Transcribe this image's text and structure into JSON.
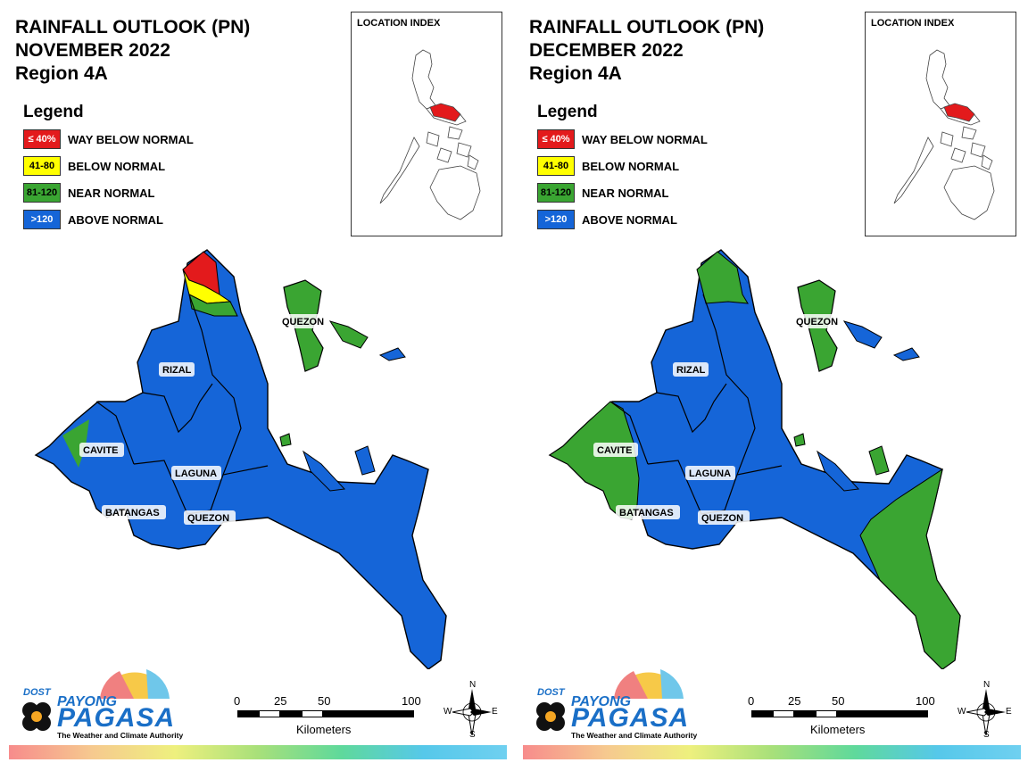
{
  "panels": [
    {
      "title_lines": [
        "RAINFALL OUTLOOK (PN)",
        "NOVEMBER 2022",
        "Region 4A"
      ],
      "legend_title": "Legend",
      "legend": [
        {
          "swatch": "≤ 40%",
          "label": "WAY BELOW NORMAL",
          "color": "#e31a1c",
          "text_color": "#ffffff"
        },
        {
          "swatch": "41-80",
          "label": "BELOW NORMAL",
          "color": "#ffff00",
          "text_color": "#000000"
        },
        {
          "swatch": "81-120",
          "label": "NEAR NORMAL",
          "color": "#3aa532",
          "text_color": "#000000"
        },
        {
          "swatch": ">120",
          "label": "ABOVE NORMAL",
          "color": "#1565d8",
          "text_color": "#ffffff"
        }
      ],
      "inset_title": "LOCATION INDEX",
      "province_labels": {
        "rizal": "RIZAL",
        "cavite": "CAVITE",
        "laguna": "LAGUNA",
        "batangas": "BATANGAS",
        "quezon_south": "QUEZON",
        "quezon_north": "QUEZON"
      },
      "scale": {
        "ticks": [
          "0",
          "25",
          "50",
          "100"
        ],
        "units": "Kilometers"
      },
      "compass": {
        "n": "N",
        "s": "S",
        "e": "E",
        "w": "W"
      },
      "logo": {
        "dost": "DOST",
        "payong": "PAYONG",
        "pagasa": "PAGASA",
        "tagline": "The Weather and Climate Authority"
      },
      "map_variant": "november"
    },
    {
      "title_lines": [
        "RAINFALL OUTLOOK (PN)",
        "DECEMBER 2022",
        "Region 4A"
      ],
      "legend_title": "Legend",
      "legend": [
        {
          "swatch": "≤ 40%",
          "label": "WAY BELOW NORMAL",
          "color": "#e31a1c",
          "text_color": "#ffffff"
        },
        {
          "swatch": "41-80",
          "label": "BELOW NORMAL",
          "color": "#ffff00",
          "text_color": "#000000"
        },
        {
          "swatch": "81-120",
          "label": "NEAR NORMAL",
          "color": "#3aa532",
          "text_color": "#000000"
        },
        {
          "swatch": ">120",
          "label": "ABOVE NORMAL",
          "color": "#1565d8",
          "text_color": "#ffffff"
        }
      ],
      "inset_title": "LOCATION INDEX",
      "province_labels": {
        "rizal": "RIZAL",
        "cavite": "CAVITE",
        "laguna": "LAGUNA",
        "batangas": "BATANGAS",
        "quezon_south": "QUEZON",
        "quezon_north": "QUEZON"
      },
      "scale": {
        "ticks": [
          "0",
          "25",
          "50",
          "100"
        ],
        "units": "Kilometers"
      },
      "compass": {
        "n": "N",
        "s": "S",
        "e": "E",
        "w": "W"
      },
      "logo": {
        "dost": "DOST",
        "payong": "PAYONG",
        "pagasa": "PAGASA",
        "tagline": "The Weather and Climate Authority"
      },
      "map_variant": "december"
    }
  ],
  "colors": {
    "way_below": "#e31a1c",
    "below": "#ffff00",
    "near": "#3aa532",
    "above": "#1565d8",
    "highlight_region": "#e31a1c"
  },
  "province_rainfall": {
    "november": {
      "north_tip": "WAY BELOW NORMAL",
      "north_band": "BELOW NORMAL",
      "rizal_north": "NEAR NORMAL",
      "cavite_west": "NEAR NORMAL",
      "polillo": "NEAR NORMAL",
      "mainland": "ABOVE NORMAL"
    },
    "december": {
      "north_tip": "NEAR NORMAL",
      "cavite": "NEAR NORMAL",
      "batangas_west": "NEAR NORMAL",
      "quezon_south": "NEAR NORMAL",
      "polillo": "NEAR NORMAL",
      "mainland": "ABOVE NORMAL"
    }
  }
}
